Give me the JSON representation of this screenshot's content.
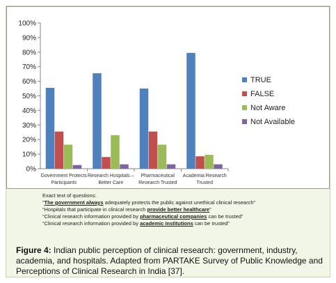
{
  "chart_data": {
    "type": "bar",
    "categories": [
      "Government Protects Participants",
      "Research Hospitals - Better Care",
      "Pharmaceutical Research Trusted",
      "Academia Research Trusted"
    ],
    "category_lines": [
      [
        "Government Protects",
        "Participants"
      ],
      [
        "Research Hospitals –",
        "Better Care"
      ],
      [
        "Pharmaceutical",
        "Research Trusted"
      ],
      [
        "Academia Research",
        "Trusted"
      ]
    ],
    "series": [
      {
        "name": "TRUE",
        "values": [
          55.5,
          65.5,
          55,
          79.5
        ],
        "color": "#4f81bd"
      },
      {
        "name": "FALSE",
        "values": [
          25.5,
          8,
          25.5,
          8.5
        ],
        "color": "#c0504d"
      },
      {
        "name": "Not Aware",
        "values": [
          16.5,
          23,
          16.5,
          9.5
        ],
        "color": "#9bbb59"
      },
      {
        "name": "Not Available",
        "values": [
          2.5,
          3,
          3,
          3
        ],
        "color": "#8064a2"
      }
    ],
    "y_ticks": [
      "0%",
      "10%",
      "20%",
      "30%",
      "40%",
      "50%",
      "60%",
      "70%",
      "80%",
      "90%",
      "100%"
    ],
    "ylim": [
      0,
      100
    ],
    "legend_position": "right",
    "grid": false
  },
  "questions": {
    "heading": "Exact text of questions:",
    "q1_pre": "“",
    "q1_bold": "The government always",
    "q1_post": " adequately protects the public against unethical clinical research”",
    "q2_pre": "“Hospitals that participate in clinical research ",
    "q2_bold": "provide better healthcare",
    "q2_post": "”",
    "q3_pre": "“Clinical research information provided by ",
    "q3_bold": "pharmaceutical companies",
    "q3_post": " can be trusted”",
    "q4_pre": "“Clinical research information provided by ",
    "q4_bold": "academic institutions",
    "q4_post": " can be trusted”"
  },
  "caption": {
    "label": "Figure 4:",
    "text": " Indian public perception of clinical research: government, industry, academia, and hospitals. Adapted from PARTAKE Survey of Public Knowledge and Perceptions of Clinical Research in India [37]."
  }
}
